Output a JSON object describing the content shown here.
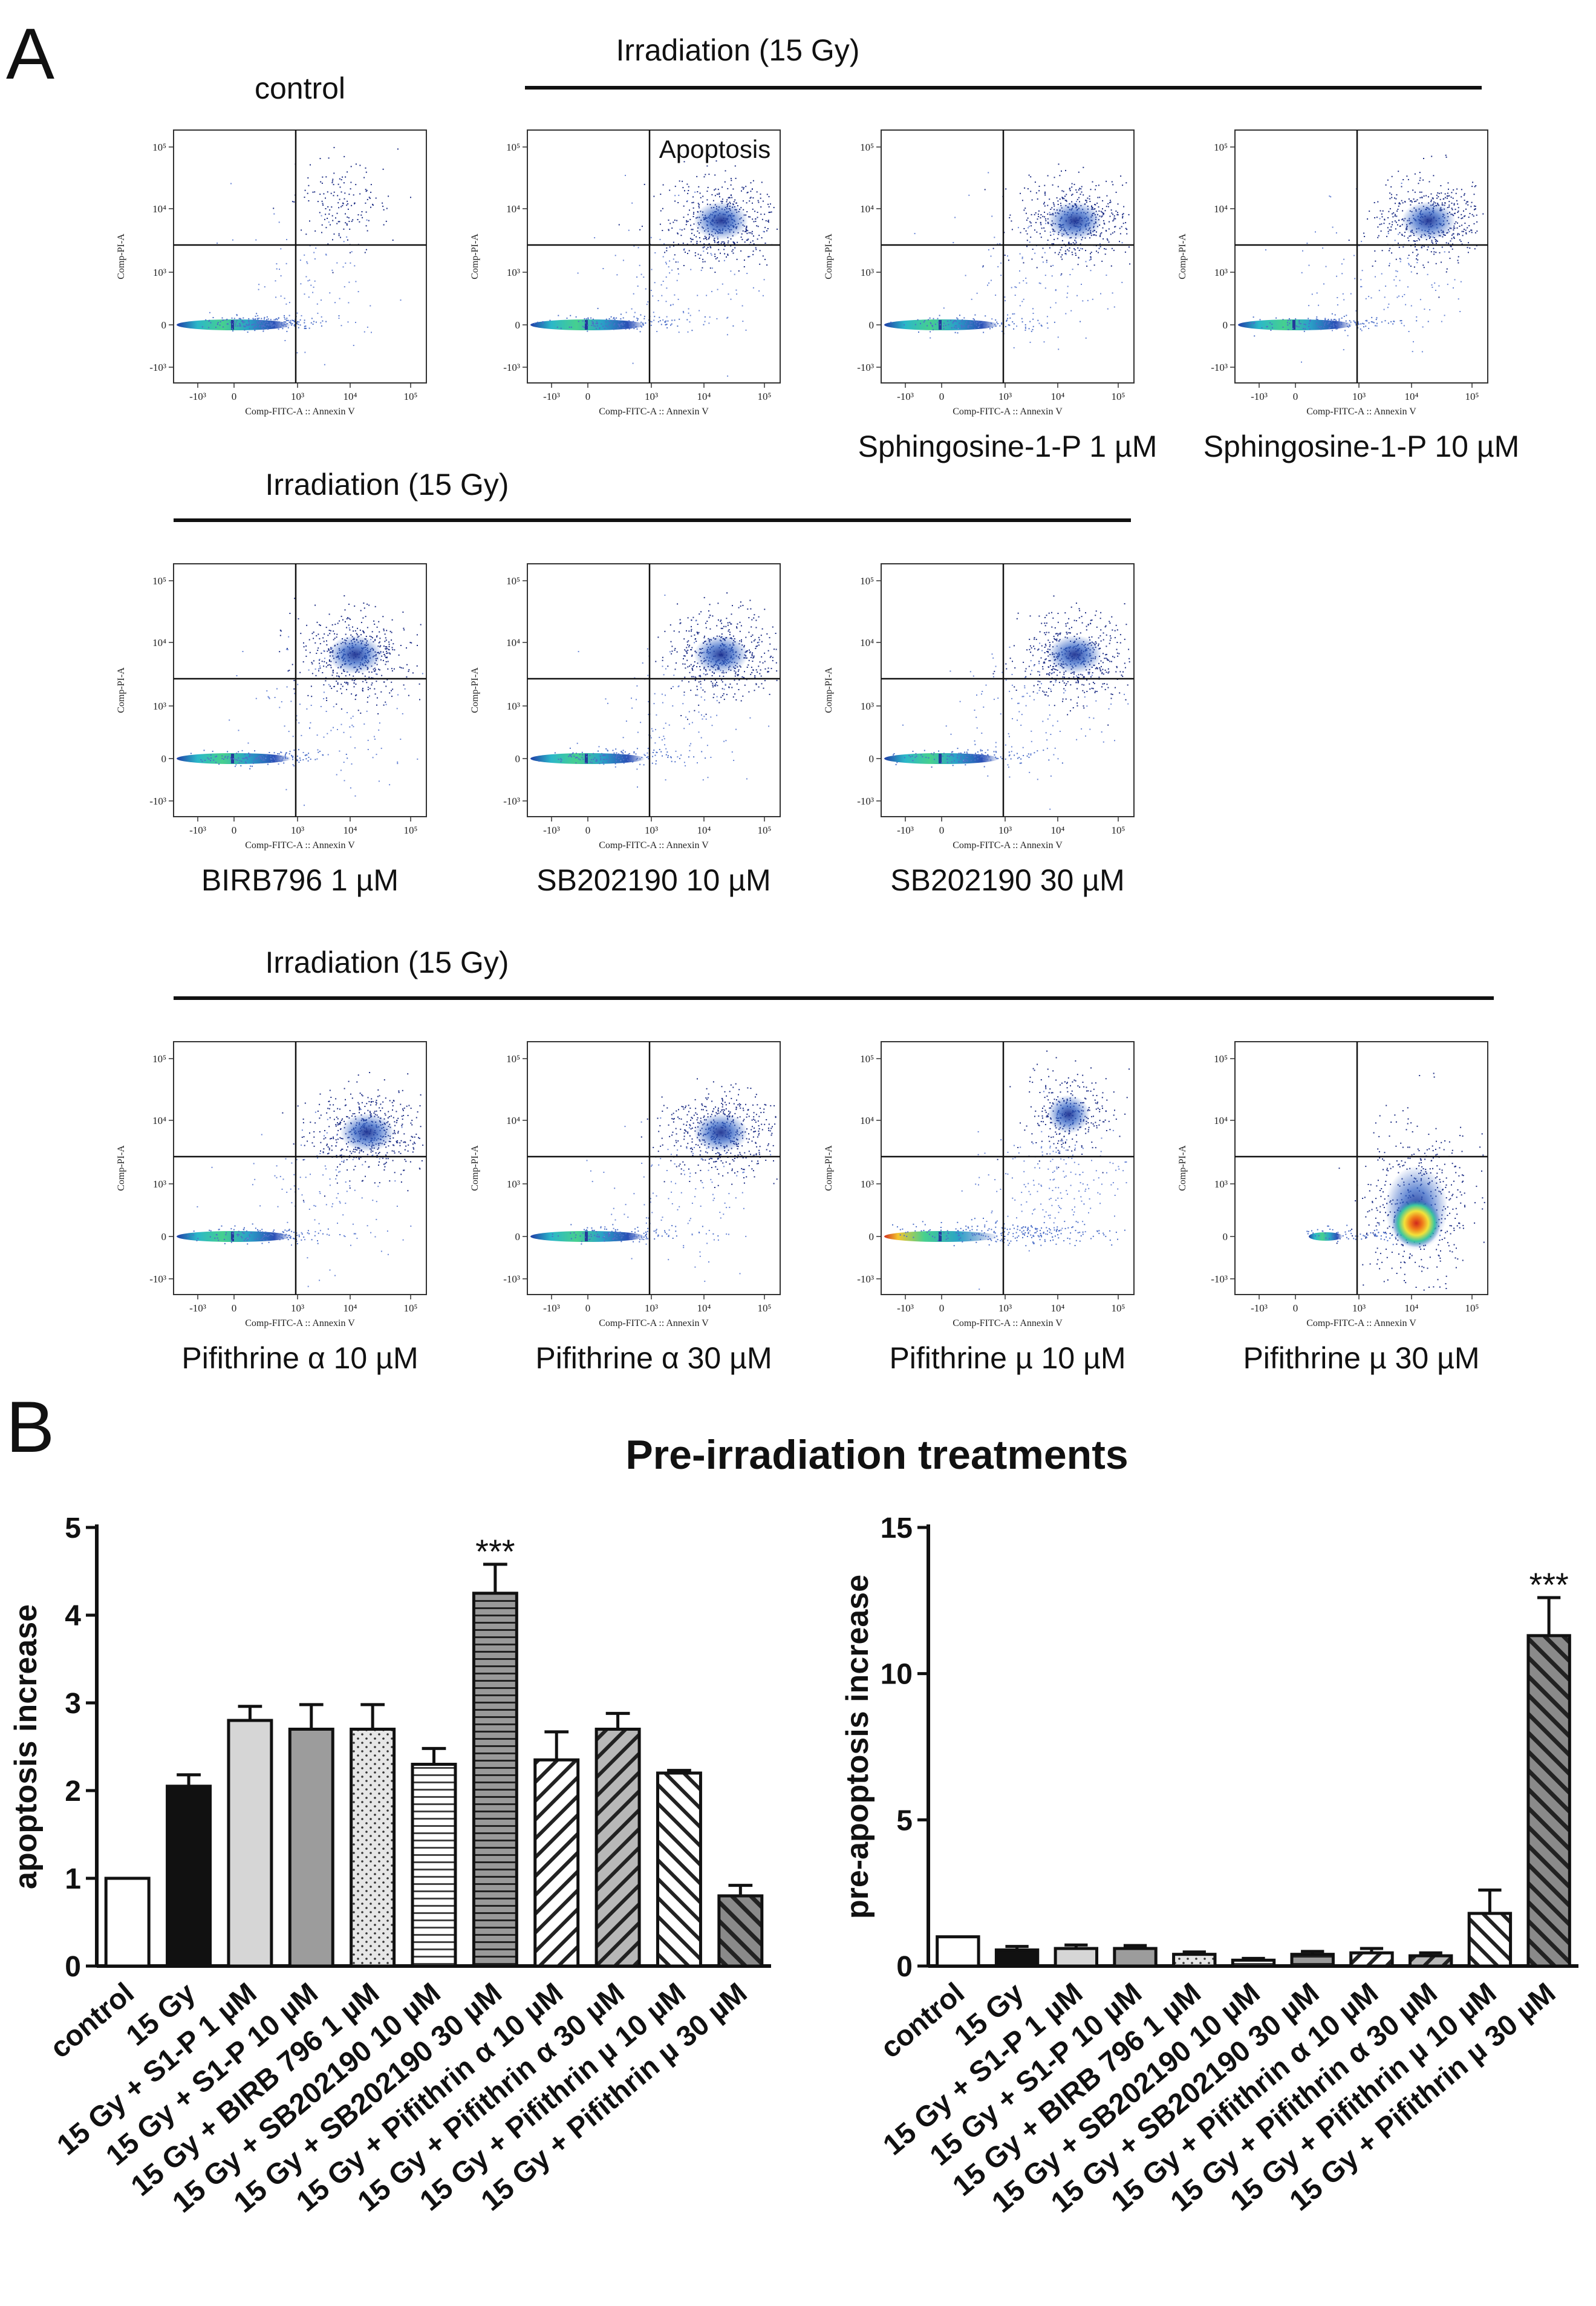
{
  "panel_a": {
    "letter": "A",
    "irr_label": "Irradiation (15 Gy)",
    "apoptosis_label": "Apoptosis",
    "axis": {
      "x_title": "Comp-FITC-A :: Annexin V",
      "y_title": "Comp-PI-A",
      "x_ticks": [
        "-10³",
        "0",
        "10³",
        "10⁴",
        "10⁵"
      ],
      "y_ticks": [
        "10⁵",
        "10⁴",
        "10³",
        "0",
        "-10³"
      ]
    },
    "plots": [
      {
        "title": "control",
        "title_pos": "top",
        "style": "control"
      },
      {
        "title": "",
        "title_pos": "none",
        "style": "irr"
      },
      {
        "title": "Sphingosine-1-P 1 µM",
        "title_pos": "bottom",
        "style": "s1p"
      },
      {
        "title": "Sphingosine-1-P 10 µM",
        "title_pos": "bottom",
        "style": "s1p"
      },
      {
        "title": "BIRB796 1 µM",
        "title_pos": "bottom",
        "style": "birb"
      },
      {
        "title": "SB202190 10 µM",
        "title_pos": "bottom",
        "style": "irr"
      },
      {
        "title": "SB202190 30 µM",
        "title_pos": "bottom",
        "style": "irr"
      },
      {
        "title": "Pifithrine α 10 µM",
        "title_pos": "bottom",
        "style": "irr"
      },
      {
        "title": "Pifithrine α 30 µM",
        "title_pos": "bottom",
        "style": "irr"
      },
      {
        "title": "Pifithrine µ 10 µM",
        "title_pos": "bottom",
        "style": "pmu10"
      },
      {
        "title": "Pifithrine µ 30 µM",
        "title_pos": "bottom",
        "style": "pmu30"
      }
    ]
  },
  "panel_b": {
    "letter": "B",
    "header": "Pre-irradiation treatments",
    "significance": "***"
  },
  "chart_data": [
    {
      "type": "bar",
      "title": "Pre-irradiation treatments",
      "ylabel": "apoptosis increase",
      "xlabel": "",
      "ylim": [
        0,
        5
      ],
      "yticks": [
        0,
        1,
        2,
        3,
        4,
        5
      ],
      "categories": [
        "control",
        "15 Gy",
        "15 Gy + S1-P 1 µM",
        "15 Gy + S1-P 10 µM",
        "15 Gy + BIRB 796 1 µM",
        "15 Gy + SB202190 10 µM",
        "15 Gy + SB202190 30 µM",
        "15 Gy + Pifithrin α 10 µM",
        "15 Gy + Pifithrin α 30 µM",
        "15 Gy + Pifithrin µ 10 µM",
        "15 Gy + Pifithrin µ 30 µM"
      ],
      "values": [
        1.0,
        2.05,
        2.8,
        2.7,
        2.7,
        2.3,
        4.25,
        2.35,
        2.7,
        2.2,
        0.8
      ],
      "errors": [
        0.0,
        0.13,
        0.16,
        0.28,
        0.28,
        0.18,
        0.33,
        0.32,
        0.18,
        0.03,
        0.12
      ],
      "fills": [
        "white",
        "black",
        "lightgray",
        "gray",
        "dots",
        "hlines",
        "hlines-dark",
        "diag-back",
        "diag-back-gray",
        "diag-fwd",
        "diag-fwd-dark"
      ],
      "significant_index": 6,
      "significance_label": "***"
    },
    {
      "type": "bar",
      "title": "Pre-irradiation treatments",
      "ylabel": "pre-apoptosis increase",
      "xlabel": "",
      "ylim": [
        0,
        15
      ],
      "yticks": [
        0,
        5,
        10,
        15
      ],
      "categories": [
        "control",
        "15 Gy",
        "15 Gy + S1-P 1 µM",
        "15 Gy + S1-P 10 µM",
        "15 Gy + BIRB 796 1 µM",
        "15 Gy + SB202190 10 µM",
        "15 Gy + SB202190 30 µM",
        "15 Gy + Pifithrin α 10 µM",
        "15 Gy + Pifithrin α 30 µM",
        "15 Gy + Pifithrin µ 10 µM",
        "15 Gy + Pifithrin µ 30 µM"
      ],
      "values": [
        1.0,
        0.55,
        0.6,
        0.6,
        0.4,
        0.2,
        0.4,
        0.45,
        0.35,
        1.8,
        11.3
      ],
      "errors": [
        0.0,
        0.12,
        0.12,
        0.1,
        0.08,
        0.06,
        0.1,
        0.15,
        0.1,
        0.8,
        1.3
      ],
      "fills": [
        "white",
        "black",
        "lightgray",
        "gray",
        "dots",
        "hlines",
        "hlines-dark",
        "diag-back",
        "diag-back-gray",
        "diag-fwd",
        "diag-fwd-dark"
      ],
      "significant_index": 10,
      "significance_label": "***"
    }
  ]
}
